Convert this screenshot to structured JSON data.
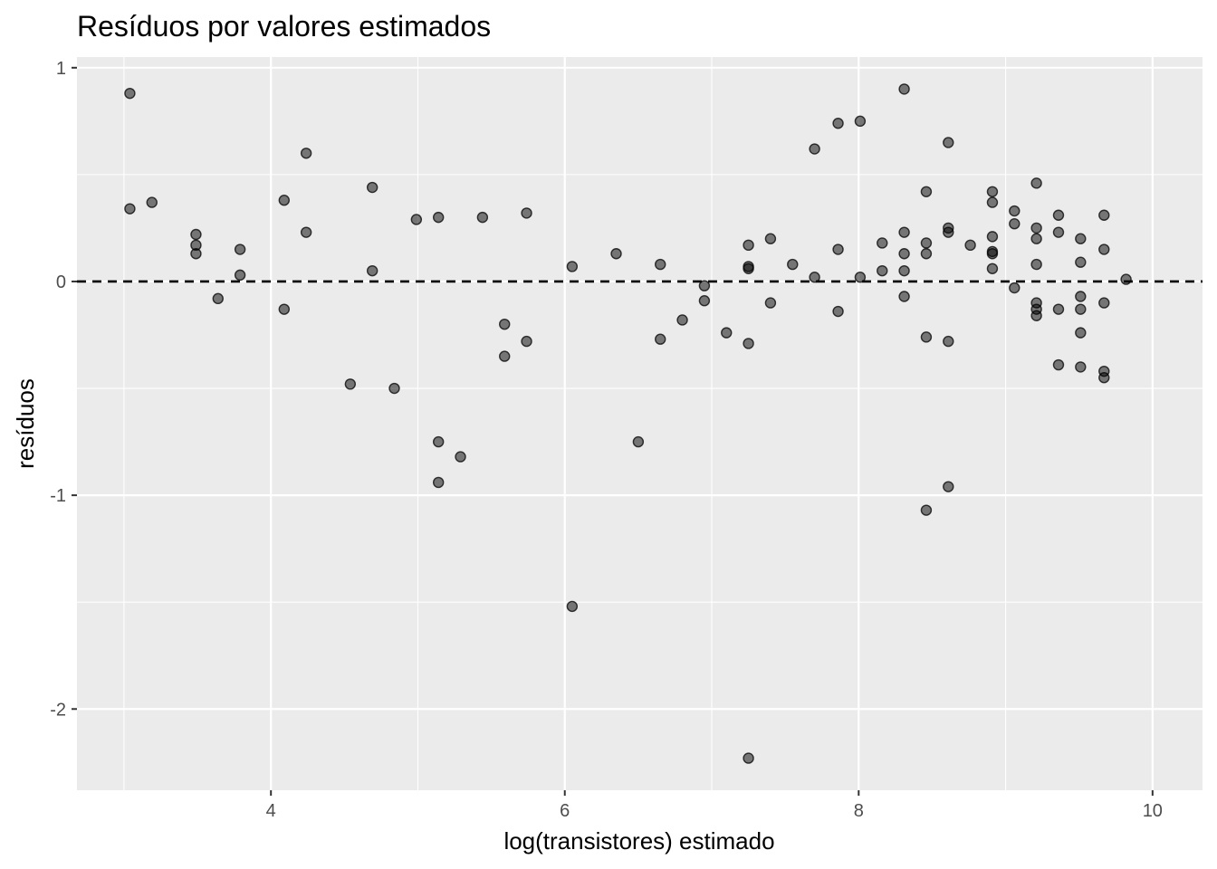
{
  "chart_data": {
    "type": "scatter",
    "title": "Resíduos por valores estimados",
    "xlabel": "log(transistores) estimado",
    "ylabel": "resíduos",
    "xlim": [
      2.68,
      10.34
    ],
    "ylim": [
      -2.38,
      1.05
    ],
    "xticks": [
      {
        "value": 4,
        "label": "4"
      },
      {
        "value": 6,
        "label": "6"
      },
      {
        "value": 8,
        "label": "8"
      },
      {
        "value": 10,
        "label": "10"
      }
    ],
    "yticks": [
      {
        "value": 1,
        "label": "1"
      },
      {
        "value": 0,
        "label": "0"
      },
      {
        "value": -1,
        "label": "-1"
      },
      {
        "value": -2,
        "label": "-2"
      }
    ],
    "reference_line": {
      "y": 0,
      "style": "dashed"
    },
    "grid": true,
    "colors": {
      "panel": "#ebebeb",
      "grid": "#ffffff",
      "point": "#000000",
      "point_opacity": 0.5
    },
    "points": [
      {
        "x": 3.04,
        "y": 0.88
      },
      {
        "x": 3.04,
        "y": 0.34
      },
      {
        "x": 3.19,
        "y": 0.37
      },
      {
        "x": 3.49,
        "y": 0.22
      },
      {
        "x": 3.49,
        "y": 0.17
      },
      {
        "x": 3.49,
        "y": 0.13
      },
      {
        "x": 3.64,
        "y": -0.08
      },
      {
        "x": 3.79,
        "y": 0.15
      },
      {
        "x": 3.79,
        "y": 0.03
      },
      {
        "x": 4.09,
        "y": 0.38
      },
      {
        "x": 4.09,
        "y": -0.13
      },
      {
        "x": 4.24,
        "y": 0.6
      },
      {
        "x": 4.24,
        "y": 0.23
      },
      {
        "x": 4.54,
        "y": -0.48
      },
      {
        "x": 4.69,
        "y": 0.44
      },
      {
        "x": 4.69,
        "y": 0.05
      },
      {
        "x": 4.84,
        "y": -0.5
      },
      {
        "x": 4.99,
        "y": 0.29
      },
      {
        "x": 5.14,
        "y": 0.3
      },
      {
        "x": 5.14,
        "y": -0.75
      },
      {
        "x": 5.14,
        "y": -0.94
      },
      {
        "x": 5.29,
        "y": -0.82
      },
      {
        "x": 5.44,
        "y": 0.3
      },
      {
        "x": 5.59,
        "y": -0.2
      },
      {
        "x": 5.59,
        "y": -0.35
      },
      {
        "x": 5.74,
        "y": 0.32
      },
      {
        "x": 5.74,
        "y": -0.28
      },
      {
        "x": 6.05,
        "y": 0.07
      },
      {
        "x": 6.05,
        "y": -1.52
      },
      {
        "x": 6.35,
        "y": 0.13
      },
      {
        "x": 6.5,
        "y": -0.75
      },
      {
        "x": 6.65,
        "y": 0.08
      },
      {
        "x": 6.65,
        "y": -0.27
      },
      {
        "x": 6.8,
        "y": -0.18
      },
      {
        "x": 6.95,
        "y": -0.02
      },
      {
        "x": 6.95,
        "y": -0.09
      },
      {
        "x": 7.1,
        "y": -0.24
      },
      {
        "x": 7.25,
        "y": 0.17
      },
      {
        "x": 7.25,
        "y": 0.07
      },
      {
        "x": 7.25,
        "y": 0.06
      },
      {
        "x": 7.25,
        "y": -0.29
      },
      {
        "x": 7.25,
        "y": -2.23
      },
      {
        "x": 7.4,
        "y": 0.2
      },
      {
        "x": 7.4,
        "y": -0.1
      },
      {
        "x": 7.55,
        "y": 0.08
      },
      {
        "x": 7.7,
        "y": 0.62
      },
      {
        "x": 7.7,
        "y": 0.02
      },
      {
        "x": 7.86,
        "y": 0.74
      },
      {
        "x": 7.86,
        "y": 0.15
      },
      {
        "x": 7.86,
        "y": -0.14
      },
      {
        "x": 8.01,
        "y": 0.75
      },
      {
        "x": 8.01,
        "y": 0.02
      },
      {
        "x": 8.16,
        "y": 0.18
      },
      {
        "x": 8.16,
        "y": 0.05
      },
      {
        "x": 8.31,
        "y": 0.9
      },
      {
        "x": 8.31,
        "y": 0.23
      },
      {
        "x": 8.31,
        "y": 0.13
      },
      {
        "x": 8.31,
        "y": 0.05
      },
      {
        "x": 8.31,
        "y": -0.07
      },
      {
        "x": 8.46,
        "y": 0.42
      },
      {
        "x": 8.46,
        "y": 0.18
      },
      {
        "x": 8.46,
        "y": 0.13
      },
      {
        "x": 8.46,
        "y": -0.26
      },
      {
        "x": 8.46,
        "y": -1.07
      },
      {
        "x": 8.61,
        "y": 0.65
      },
      {
        "x": 8.61,
        "y": 0.25
      },
      {
        "x": 8.61,
        "y": 0.23
      },
      {
        "x": 8.61,
        "y": -0.28
      },
      {
        "x": 8.61,
        "y": -0.96
      },
      {
        "x": 8.76,
        "y": 0.17
      },
      {
        "x": 8.91,
        "y": 0.42
      },
      {
        "x": 8.91,
        "y": 0.37
      },
      {
        "x": 8.91,
        "y": 0.21
      },
      {
        "x": 8.91,
        "y": 0.14
      },
      {
        "x": 8.91,
        "y": 0.13
      },
      {
        "x": 8.91,
        "y": 0.06
      },
      {
        "x": 9.06,
        "y": 0.33
      },
      {
        "x": 9.06,
        "y": 0.27
      },
      {
        "x": 9.06,
        "y": -0.03
      },
      {
        "x": 9.21,
        "y": 0.46
      },
      {
        "x": 9.21,
        "y": 0.25
      },
      {
        "x": 9.21,
        "y": 0.2
      },
      {
        "x": 9.21,
        "y": 0.08
      },
      {
        "x": 9.21,
        "y": -0.1
      },
      {
        "x": 9.21,
        "y": -0.13
      },
      {
        "x": 9.21,
        "y": -0.16
      },
      {
        "x": 9.36,
        "y": 0.31
      },
      {
        "x": 9.36,
        "y": 0.23
      },
      {
        "x": 9.36,
        "y": -0.13
      },
      {
        "x": 9.36,
        "y": -0.39
      },
      {
        "x": 9.51,
        "y": 0.2
      },
      {
        "x": 9.51,
        "y": 0.09
      },
      {
        "x": 9.51,
        "y": -0.07
      },
      {
        "x": 9.51,
        "y": -0.13
      },
      {
        "x": 9.51,
        "y": -0.24
      },
      {
        "x": 9.51,
        "y": -0.4
      },
      {
        "x": 9.67,
        "y": 0.31
      },
      {
        "x": 9.67,
        "y": 0.15
      },
      {
        "x": 9.67,
        "y": -0.1
      },
      {
        "x": 9.67,
        "y": -0.42
      },
      {
        "x": 9.67,
        "y": -0.45
      },
      {
        "x": 9.82,
        "y": 0.01
      }
    ]
  }
}
